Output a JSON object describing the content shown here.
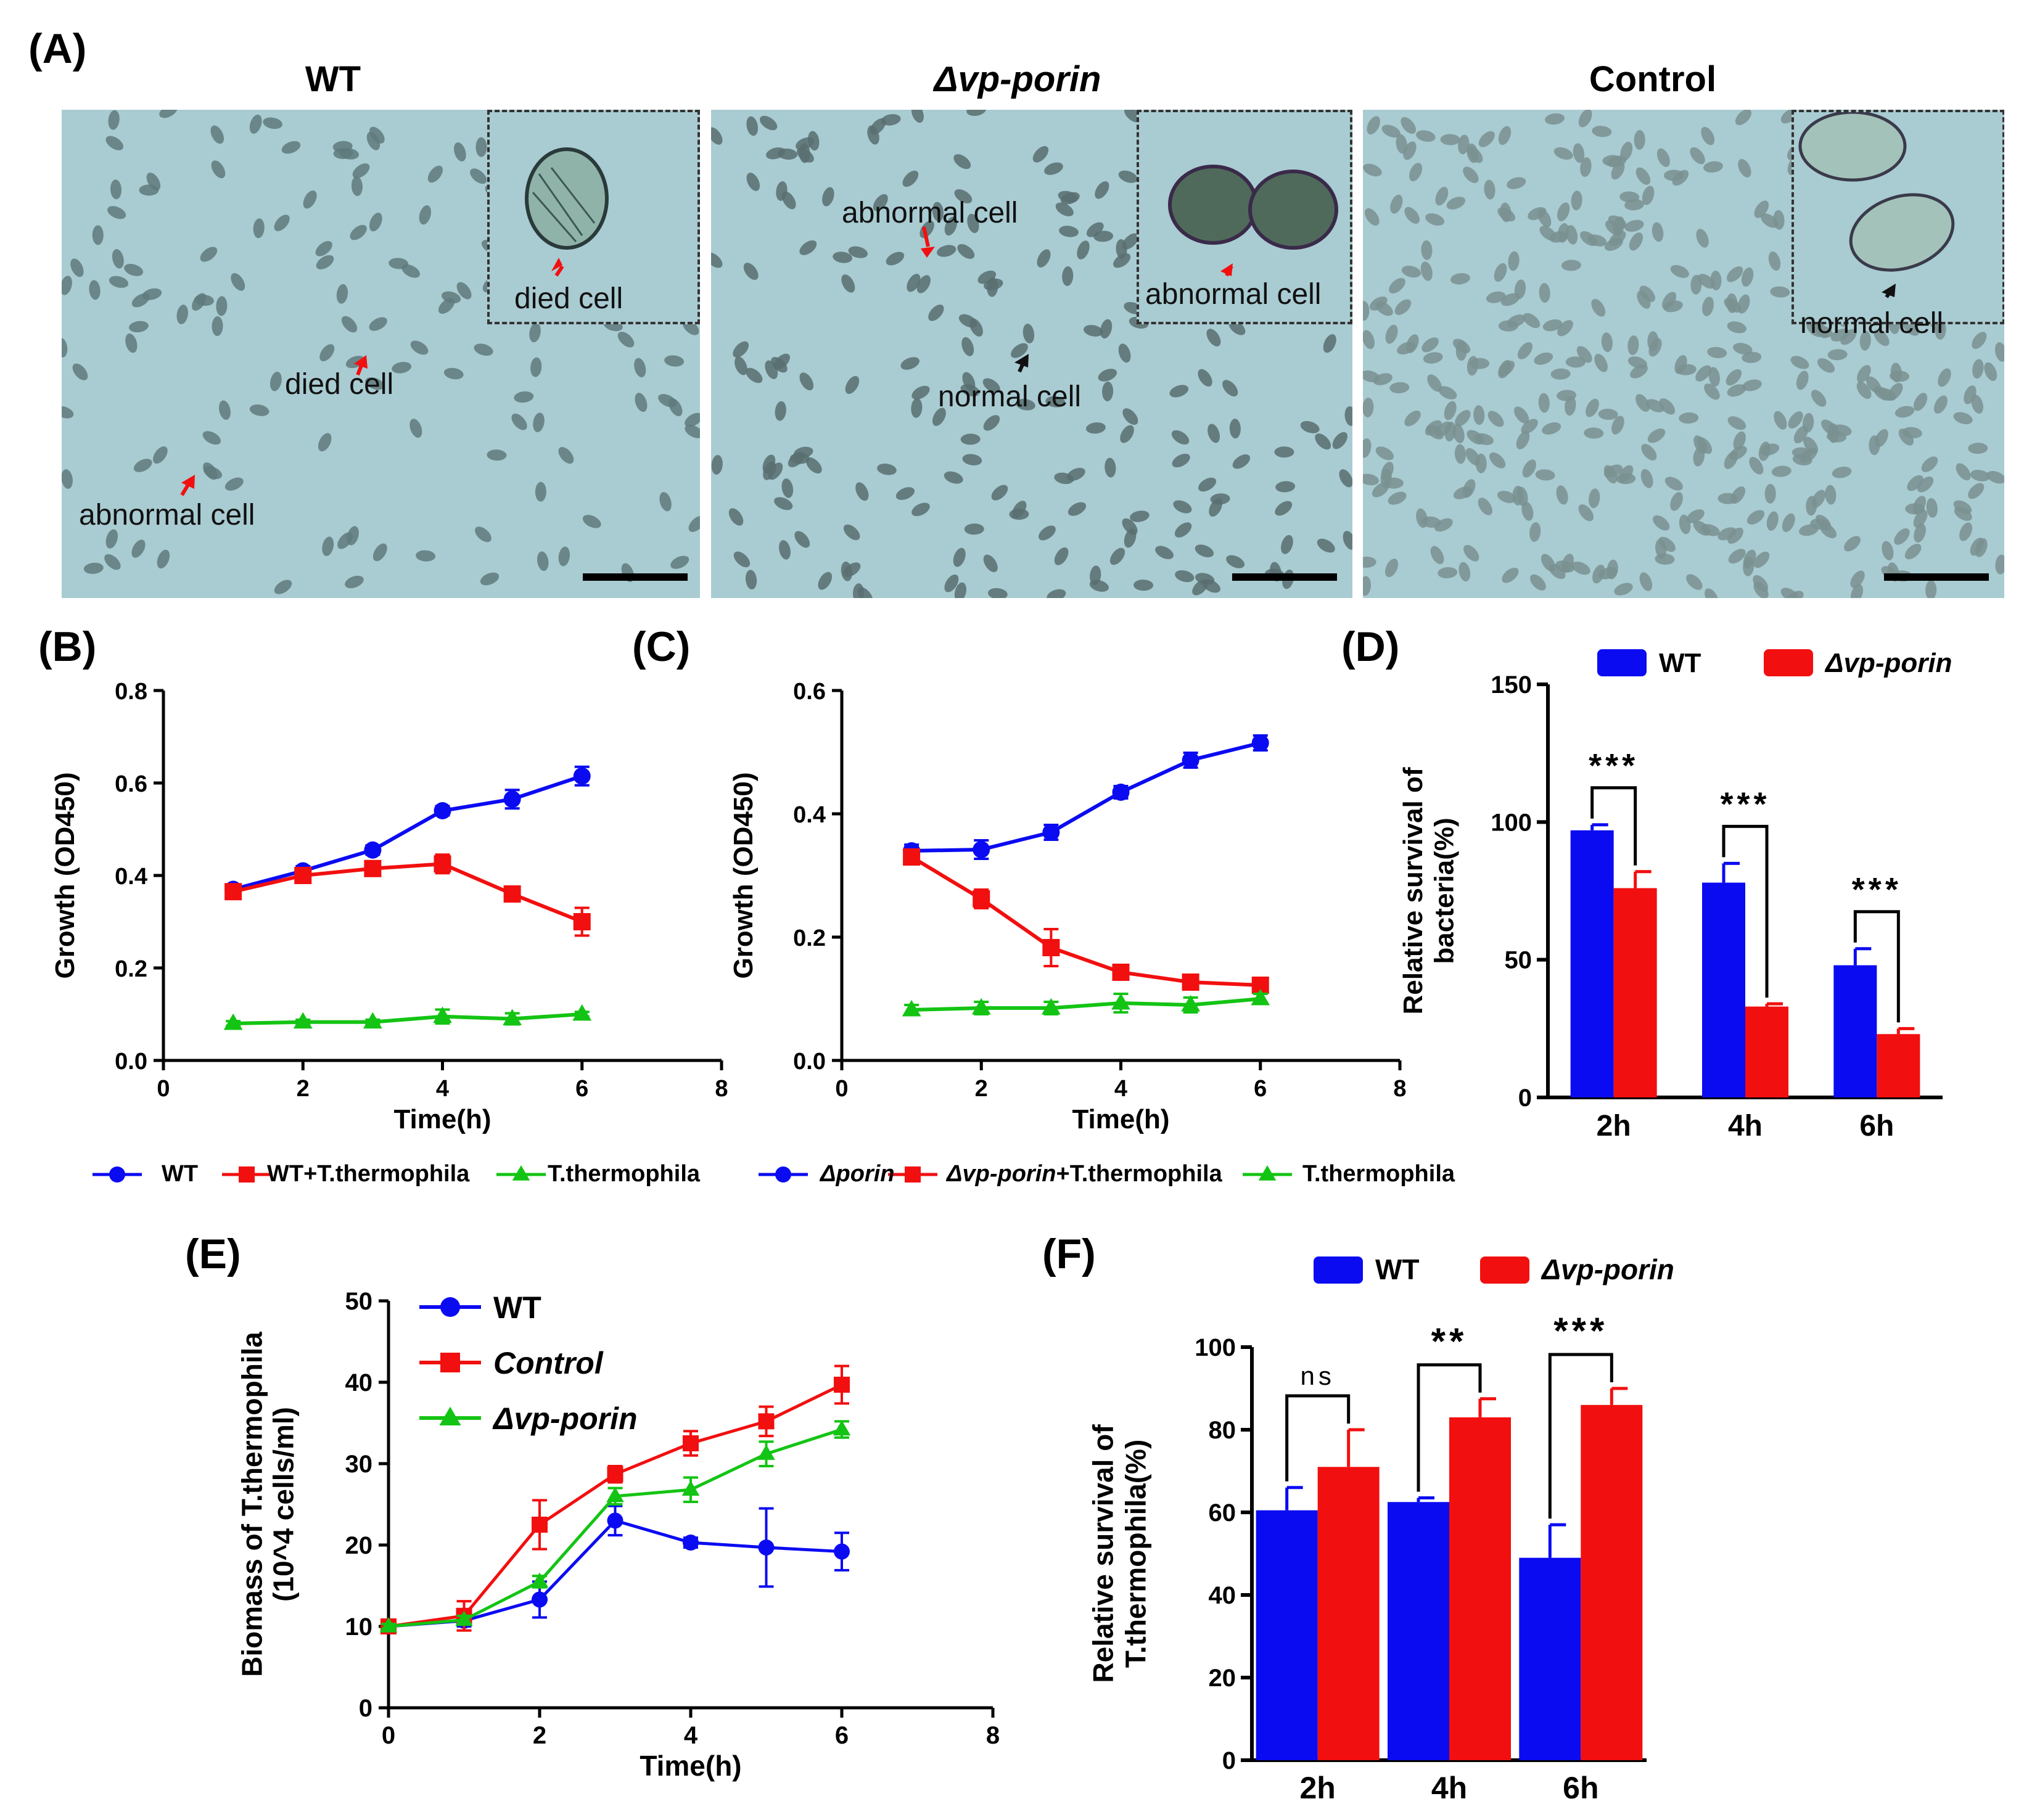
{
  "panels": {
    "A": "(A)",
    "B": "(B)",
    "C": "(C)",
    "D": "(D)",
    "E": "(E)",
    "F": "(F)"
  },
  "micrographs": {
    "wt": {
      "title": "WT",
      "labels": {
        "died_inset": "died cell",
        "died": "died cell",
        "abnormal": "abnormal cell"
      }
    },
    "vp": {
      "title": "Δvp-porin",
      "labels": {
        "abnormal": "abnormal cell",
        "abnormal_inset": "abnormal cell",
        "normal": "normal cell"
      }
    },
    "control": {
      "title": "Control",
      "labels": {
        "normal_inset": "normal cell"
      }
    }
  },
  "colors": {
    "blue": "#0b0bf2",
    "red": "#f20f0f",
    "green": "#14c414",
    "micro_bg": "#a9cbd2"
  },
  "legend_bc": {
    "b_items": [
      "WT",
      "WT+T.thermophila",
      "T.thermophila"
    ],
    "c_items": [
      "Δporin",
      "Δvp-porin",
      "+T.thermophila",
      "T.thermophila"
    ]
  },
  "chart_data": [
    {
      "id": "B",
      "type": "line",
      "xlabel": "Time(h)",
      "ylabel": "Growth (OD450)",
      "xlim": [
        0,
        8
      ],
      "ylim": [
        0,
        0.8
      ],
      "xticks": [
        "0",
        "2",
        "4",
        "6",
        "8"
      ],
      "yticks": [
        "0.0",
        "0.2",
        "0.4",
        "0.6",
        "0.8"
      ],
      "x": [
        1,
        2,
        3,
        4,
        5,
        6
      ],
      "series": [
        {
          "name": "WT",
          "color": "#0b0bf2",
          "marker": "circle",
          "values": [
            0.37,
            0.41,
            0.455,
            0.54,
            0.565,
            0.615
          ],
          "err": [
            0.01,
            0.01,
            0.01,
            0.01,
            0.02,
            0.02
          ]
        },
        {
          "name": "WT+T.thermophila",
          "color": "#f20f0f",
          "marker": "square",
          "values": [
            0.365,
            0.4,
            0.415,
            0.425,
            0.36,
            0.3
          ],
          "err": [
            0.01,
            0.01,
            0.015,
            0.02,
            0.015,
            0.03
          ]
        },
        {
          "name": "T.thermophila",
          "color": "#14c414",
          "marker": "triangle",
          "values": [
            0.08,
            0.083,
            0.083,
            0.095,
            0.09,
            0.1
          ],
          "err": [
            0.005,
            0.005,
            0.005,
            0.015,
            0.012,
            0.005
          ]
        }
      ]
    },
    {
      "id": "C",
      "type": "line",
      "xlabel": "Time(h)",
      "ylabel": "Growth (OD450)",
      "xlim": [
        0,
        8
      ],
      "ylim": [
        0,
        0.6
      ],
      "xticks": [
        "0",
        "2",
        "4",
        "6",
        "8"
      ],
      "yticks": [
        "0.0",
        "0.2",
        "0.4",
        "0.6"
      ],
      "x": [
        1,
        2,
        3,
        4,
        5,
        6
      ],
      "series": [
        {
          "name": "Δporin",
          "color": "#0b0bf2",
          "marker": "circle",
          "values": [
            0.34,
            0.342,
            0.37,
            0.435,
            0.487,
            0.515
          ],
          "err": [
            0.01,
            0.015,
            0.012,
            0.01,
            0.012,
            0.012
          ]
        },
        {
          "name": "Δvp-porin+T.thermophila",
          "color": "#f20f0f",
          "marker": "square",
          "values": [
            0.33,
            0.262,
            0.183,
            0.143,
            0.127,
            0.122
          ],
          "err": [
            0.01,
            0.015,
            0.03,
            0.008,
            0.008,
            0.008
          ]
        },
        {
          "name": "T.thermophila",
          "color": "#14c414",
          "marker": "triangle",
          "values": [
            0.082,
            0.085,
            0.085,
            0.093,
            0.09,
            0.1
          ],
          "err": [
            0.008,
            0.01,
            0.01,
            0.015,
            0.012,
            0.008
          ]
        }
      ]
    },
    {
      "id": "D",
      "type": "bar",
      "ylabel": "Relative survival of bacteria(%)",
      "ylim": [
        0,
        150
      ],
      "yticks": [
        "0",
        "50",
        "100",
        "150"
      ],
      "categories": [
        "2h",
        "4h",
        "6h"
      ],
      "series": [
        {
          "name": "WT",
          "color": "#0b0bf2",
          "values": [
            97,
            78,
            48
          ],
          "err": [
            2,
            7,
            6
          ]
        },
        {
          "name": "Δvp-porin",
          "color": "#f20f0f",
          "values": [
            76,
            33,
            23
          ],
          "err": [
            6,
            1,
            2
          ]
        }
      ],
      "significance": [
        "***",
        "***",
        "***"
      ]
    },
    {
      "id": "E",
      "type": "line",
      "xlabel": "Time(h)",
      "ylabel": "Biomass of T.thermophila (10^4 cells/ml)",
      "xlim": [
        0,
        8
      ],
      "ylim": [
        0,
        50
      ],
      "xticks": [
        "0",
        "2",
        "4",
        "6",
        "8"
      ],
      "yticks": [
        "0",
        "10",
        "20",
        "30",
        "40",
        "50"
      ],
      "x": [
        0,
        1,
        2,
        3,
        4,
        5,
        6
      ],
      "series": [
        {
          "name": "WT",
          "color": "#0b0bf2",
          "marker": "circle",
          "values": [
            10,
            10.7,
            13.3,
            23,
            20.3,
            19.7,
            19.2
          ],
          "err": [
            0.3,
            0.7,
            2.2,
            1.8,
            0.6,
            4.8,
            2.3
          ]
        },
        {
          "name": "Control",
          "color": "#f20f0f",
          "marker": "square",
          "values": [
            10,
            11.3,
            22.5,
            28.7,
            32.5,
            35.2,
            39.7
          ],
          "err": [
            0.3,
            1.8,
            3,
            1,
            1.5,
            1.8,
            2.3
          ]
        },
        {
          "name": "Δvp-porin",
          "color": "#14c414",
          "marker": "triangle",
          "values": [
            10,
            10.8,
            15.5,
            26,
            26.8,
            31.2,
            34.2
          ],
          "err": [
            0.3,
            0.5,
            0.7,
            1,
            1.5,
            1.5,
            1
          ]
        }
      ]
    },
    {
      "id": "F",
      "type": "bar",
      "ylabel": "Relative survival of T.thermophila(%)",
      "ylim": [
        0,
        100
      ],
      "yticks": [
        "0",
        "20",
        "40",
        "60",
        "80",
        "100"
      ],
      "categories": [
        "2h",
        "4h",
        "6h"
      ],
      "series": [
        {
          "name": "WT",
          "color": "#0b0bf2",
          "values": [
            60.5,
            62.5,
            49
          ],
          "err": [
            5.5,
            1,
            8
          ]
        },
        {
          "name": "Δvp-porin",
          "color": "#f20f0f",
          "values": [
            71,
            83,
            86
          ],
          "err": [
            9,
            4.5,
            4
          ]
        }
      ],
      "significance": [
        "ns",
        "**",
        "***"
      ]
    }
  ]
}
